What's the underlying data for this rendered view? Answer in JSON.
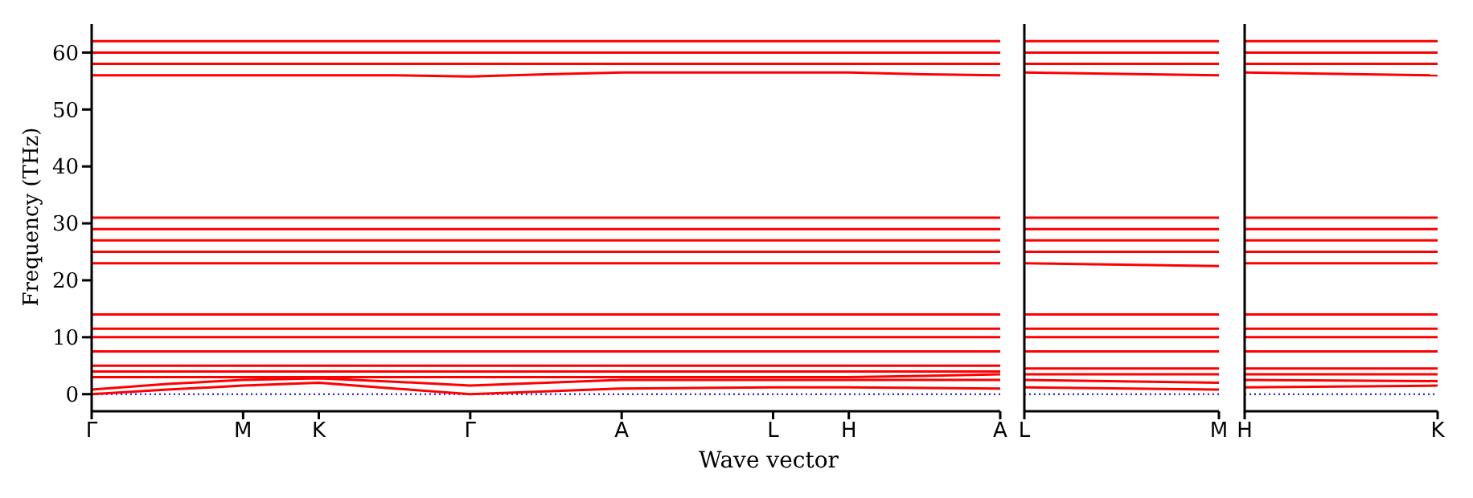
{
  "chart_data": [
    {
      "type": "line",
      "ylabel": "Frequency (THz)",
      "xlabel": "Wave vector",
      "categories": [
        "Γ",
        null,
        "M",
        "K",
        null,
        "Γ",
        null,
        "A",
        null,
        "L",
        "H",
        null,
        "A"
      ],
      "ylim": [
        -3,
        65
      ],
      "yticks": [
        0,
        10,
        20,
        30,
        40,
        50,
        60
      ],
      "ref_lines": [
        {
          "axis": "y",
          "value": 0,
          "color": "#0000ff",
          "line_style": "dotted"
        }
      ],
      "series": [
        {
          "color": "#ff0000",
          "values": [
            0,
            0.8,
            1.5,
            2,
            1,
            0,
            0.5,
            1,
            1.1,
            1.2,
            1.2,
            1.1,
            1
          ]
        },
        {
          "color": "#ff0000",
          "values": [
            0.8,
            1.8,
            2.5,
            2.8,
            2.2,
            1.5,
            2,
            2.5,
            2.5,
            2.5,
            2.5,
            2.5,
            2.5
          ]
        },
        {
          "color": "#ff0000",
          "values": [
            3,
            3,
            3,
            3,
            3,
            3,
            3,
            3,
            3,
            3,
            3,
            3.2,
            3.5
          ]
        },
        {
          "color": "#ff0000",
          "values": [
            4,
            4,
            4,
            4,
            4,
            4,
            4,
            4,
            4,
            4,
            4,
            4,
            4
          ]
        },
        {
          "color": "#ff0000",
          "values": [
            5,
            5,
            5,
            5,
            5,
            5,
            5,
            5,
            5,
            5,
            5,
            5,
            5
          ]
        },
        {
          "color": "#ff0000",
          "values": [
            7.5,
            7.5,
            7.5,
            7.5,
            7.5,
            7.5,
            7.5,
            7.5,
            7.5,
            7.5,
            7.5,
            7.5,
            7.5
          ]
        },
        {
          "color": "#ff0000",
          "values": [
            10,
            10,
            10,
            10,
            10,
            10,
            10,
            10,
            10,
            10,
            10,
            10,
            10
          ]
        },
        {
          "color": "#ff0000",
          "values": [
            11.5,
            11.5,
            11.5,
            11.5,
            11.5,
            11.5,
            11.5,
            11.5,
            11.5,
            11.5,
            11.5,
            11.5,
            11.5
          ]
        },
        {
          "color": "#ff0000",
          "values": [
            14,
            14,
            14,
            14,
            14,
            14,
            14,
            14,
            14,
            14,
            14,
            14,
            14
          ]
        },
        {
          "color": "#ff0000",
          "values": [
            23,
            23,
            23,
            23,
            23,
            23,
            23,
            23,
            23,
            23,
            23,
            23,
            23
          ]
        },
        {
          "color": "#ff0000",
          "values": [
            25,
            25,
            25,
            25,
            25,
            25,
            25,
            25,
            25,
            25,
            25,
            25,
            25
          ]
        },
        {
          "color": "#ff0000",
          "values": [
            27,
            27,
            27,
            27,
            27,
            27,
            27,
            27,
            27,
            27,
            27,
            27,
            27
          ]
        },
        {
          "color": "#ff0000",
          "values": [
            29,
            29,
            29,
            29,
            29,
            29,
            29,
            29,
            29,
            29,
            29,
            29,
            29
          ]
        },
        {
          "color": "#ff0000",
          "values": [
            31,
            31,
            31,
            31,
            31,
            31,
            31,
            31,
            31,
            31,
            31,
            31,
            31
          ]
        },
        {
          "color": "#ff0000",
          "values": [
            56,
            56,
            56,
            56,
            56,
            55.8,
            56.2,
            56.5,
            56.5,
            56.5,
            56.5,
            56.2,
            56
          ]
        },
        {
          "color": "#ff0000",
          "values": [
            58,
            58,
            58,
            58,
            58,
            58,
            58,
            58,
            58,
            58,
            58,
            58,
            58
          ]
        },
        {
          "color": "#ff0000",
          "values": [
            60,
            60,
            60,
            60,
            60,
            60,
            60,
            60,
            60,
            60,
            60,
            60,
            60
          ]
        },
        {
          "color": "#ff0000",
          "values": [
            62,
            62,
            62,
            62,
            62,
            62,
            62,
            62,
            62,
            62,
            62,
            62,
            62
          ]
        }
      ]
    },
    {
      "type": "line",
      "categories": [
        "L",
        "M"
      ],
      "ylim": [
        -3,
        65
      ],
      "tick_labels": "x",
      "ref_lines": [
        {
          "axis": "y",
          "value": 0,
          "color": "#0000ff",
          "line_style": "dotted"
        }
      ],
      "series": [
        {
          "color": "#ff0000",
          "values": [
            1.2,
            0.8
          ]
        },
        {
          "color": "#ff0000",
          "values": [
            2.5,
            2
          ]
        },
        {
          "color": "#ff0000",
          "values": [
            3.5,
            3.5
          ]
        },
        {
          "color": "#ff0000",
          "values": [
            4.5,
            4.5
          ]
        },
        {
          "color": "#ff0000",
          "values": [
            7.5,
            7.5
          ]
        },
        {
          "color": "#ff0000",
          "values": [
            10,
            10
          ]
        },
        {
          "color": "#ff0000",
          "values": [
            11.5,
            11.5
          ]
        },
        {
          "color": "#ff0000",
          "values": [
            14,
            14
          ]
        },
        {
          "color": "#ff0000",
          "values": [
            23,
            22.5
          ]
        },
        {
          "color": "#ff0000",
          "values": [
            25,
            25
          ]
        },
        {
          "color": "#ff0000",
          "values": [
            27,
            27
          ]
        },
        {
          "color": "#ff0000",
          "values": [
            29,
            29
          ]
        },
        {
          "color": "#ff0000",
          "values": [
            31,
            31
          ]
        },
        {
          "color": "#ff0000",
          "values": [
            56.5,
            56
          ]
        },
        {
          "color": "#ff0000",
          "values": [
            58,
            58
          ]
        },
        {
          "color": "#ff0000",
          "values": [
            60,
            60
          ]
        },
        {
          "color": "#ff0000",
          "values": [
            62,
            62
          ]
        }
      ]
    },
    {
      "type": "line",
      "categories": [
        "H",
        "K"
      ],
      "ylim": [
        -3,
        65
      ],
      "tick_labels": "x",
      "ref_lines": [
        {
          "axis": "y",
          "value": 0,
          "color": "#0000ff",
          "line_style": "dotted"
        }
      ],
      "series": [
        {
          "color": "#ff0000",
          "values": [
            1.2,
            1.5
          ]
        },
        {
          "color": "#ff0000",
          "values": [
            2.5,
            2.3
          ]
        },
        {
          "color": "#ff0000",
          "values": [
            3.5,
            3.5
          ]
        },
        {
          "color": "#ff0000",
          "values": [
            4.5,
            4.5
          ]
        },
        {
          "color": "#ff0000",
          "values": [
            7.5,
            7.5
          ]
        },
        {
          "color": "#ff0000",
          "values": [
            10,
            10
          ]
        },
        {
          "color": "#ff0000",
          "values": [
            11.5,
            11.5
          ]
        },
        {
          "color": "#ff0000",
          "values": [
            14,
            14
          ]
        },
        {
          "color": "#ff0000",
          "values": [
            23,
            23
          ]
        },
        {
          "color": "#ff0000",
          "values": [
            25,
            25
          ]
        },
        {
          "color": "#ff0000",
          "values": [
            27,
            27
          ]
        },
        {
          "color": "#ff0000",
          "values": [
            29,
            29
          ]
        },
        {
          "color": "#ff0000",
          "values": [
            31,
            31
          ]
        },
        {
          "color": "#ff0000",
          "values": [
            56.5,
            56
          ]
        },
        {
          "color": "#ff0000",
          "values": [
            58,
            58
          ]
        },
        {
          "color": "#ff0000",
          "values": [
            60,
            60
          ]
        },
        {
          "color": "#ff0000",
          "values": [
            62,
            62
          ]
        }
      ]
    }
  ]
}
